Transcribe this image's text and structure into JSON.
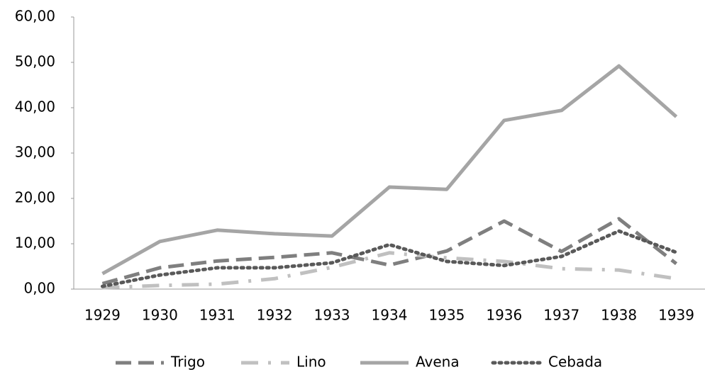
{
  "chart_data": {
    "type": "line",
    "categories": [
      "1929",
      "1930",
      "1931",
      "1932",
      "1933",
      "1934",
      "1935",
      "1936",
      "1937",
      "1938",
      "1939"
    ],
    "series": [
      {
        "name": "Trigo",
        "color": "#7f7f7f",
        "dash": "dashed",
        "values": [
          1.2,
          4.7,
          6.2,
          7,
          8,
          5.3,
          8.4,
          15,
          8.3,
          15.5,
          5.6
        ]
      },
      {
        "name": "Lino",
        "color": "#c0c0c0",
        "dash": "dashdot",
        "values": [
          0.3,
          0.8,
          1.1,
          2.3,
          4.8,
          8,
          6.9,
          6.1,
          4.5,
          4.2,
          2.3
        ]
      },
      {
        "name": "Avena",
        "color": "#a5a5a5",
        "dash": "solid",
        "values": [
          3.4,
          10.5,
          13,
          12.2,
          11.7,
          22.5,
          22,
          37.2,
          39.4,
          49.2,
          38
        ]
      },
      {
        "name": "Cebada",
        "color": "#595959",
        "dash": "dotted",
        "values": [
          0.6,
          3.1,
          4.7,
          4.7,
          5.8,
          9.8,
          6.1,
          5.2,
          7.2,
          12.8,
          8.1
        ]
      }
    ],
    "ylim": [
      0,
      60
    ],
    "yticks": [
      {
        "value": 0,
        "label": "0,00"
      },
      {
        "value": 10,
        "label": "10,00"
      },
      {
        "value": 20,
        "label": "20,00"
      },
      {
        "value": 30,
        "label": "30,00"
      },
      {
        "value": 40,
        "label": "40,00"
      },
      {
        "value": 50,
        "label": "50,00"
      },
      {
        "value": 60,
        "label": "60,00"
      }
    ],
    "grid": false,
    "legend": "bottom"
  }
}
